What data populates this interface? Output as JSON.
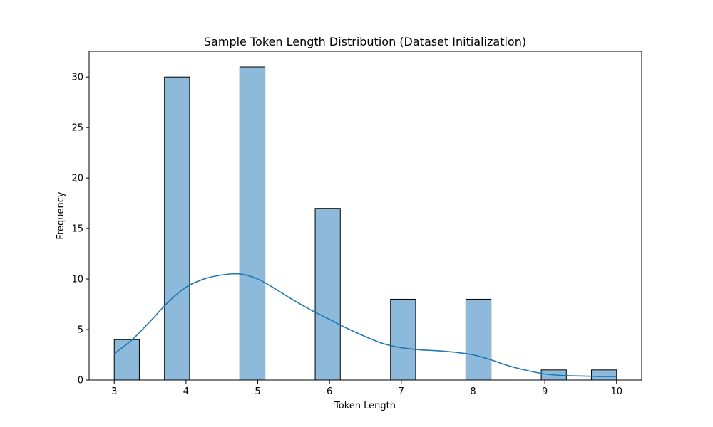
{
  "chart_data": {
    "type": "bar",
    "title": "Sample Token Length Distribution (Dataset Initialization)",
    "xlabel": "Token Length",
    "ylabel": "Frequency",
    "xlim": [
      2.65,
      10.35
    ],
    "ylim": [
      0,
      32.55
    ],
    "xticks": [
      3,
      4,
      5,
      6,
      7,
      8,
      9,
      10
    ],
    "yticks": [
      0,
      5,
      10,
      15,
      20,
      25,
      30
    ],
    "bin_width": 0.35,
    "bins": [
      {
        "left": 3.0,
        "right": 3.35,
        "value": 4
      },
      {
        "left": 3.7,
        "right": 4.05,
        "value": 30
      },
      {
        "left": 4.75,
        "right": 5.1,
        "value": 31
      },
      {
        "left": 5.8,
        "right": 6.15,
        "value": 17
      },
      {
        "left": 6.85,
        "right": 7.2,
        "value": 8
      },
      {
        "left": 7.9,
        "right": 8.25,
        "value": 8
      },
      {
        "left": 8.95,
        "right": 9.3,
        "value": 1
      },
      {
        "left": 9.65,
        "right": 10.0,
        "value": 1
      }
    ],
    "kde": {
      "name": "KDE",
      "x": [
        3.0,
        3.25,
        3.5,
        3.75,
        4.0,
        4.25,
        4.5,
        4.75,
        5.0,
        5.25,
        5.5,
        5.75,
        6.0,
        6.25,
        6.5,
        6.75,
        7.0,
        7.25,
        7.5,
        7.75,
        8.0,
        8.25,
        8.5,
        8.75,
        9.0,
        9.25,
        9.5,
        9.75,
        10.0
      ],
      "y": [
        2.6,
        4.0,
        5.8,
        7.7,
        9.2,
        10.0,
        10.4,
        10.5,
        10.0,
        9.0,
        7.9,
        6.9,
        6.0,
        5.1,
        4.3,
        3.6,
        3.2,
        3.0,
        2.9,
        2.75,
        2.5,
        2.0,
        1.4,
        0.95,
        0.6,
        0.45,
        0.4,
        0.35,
        0.35
      ]
    },
    "colors": {
      "bar_fill": "#8db9da",
      "bar_edge": "#000000",
      "kde": "#1f77b4"
    }
  }
}
